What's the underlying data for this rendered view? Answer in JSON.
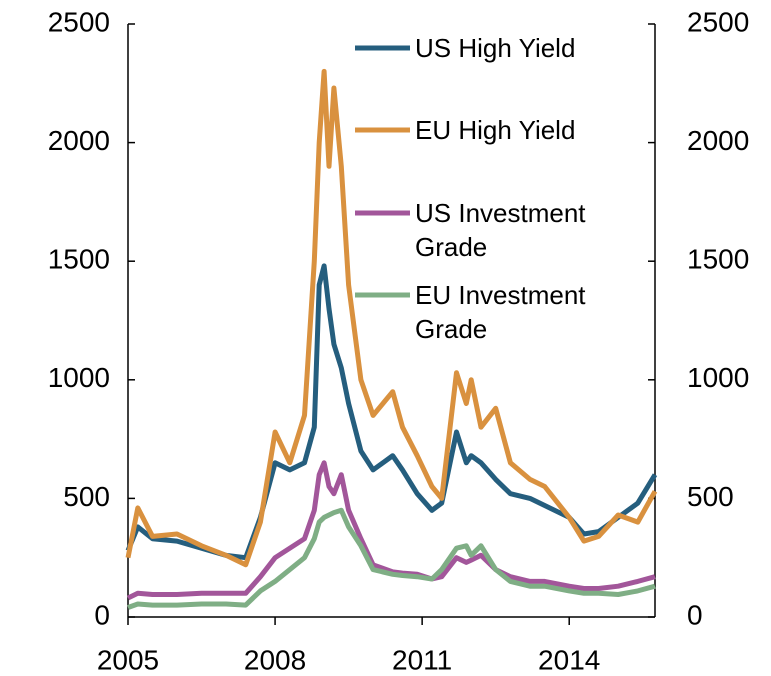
{
  "chart_data": {
    "type": "line",
    "x": [
      2005,
      2005.2,
      2005.5,
      2006,
      2006.5,
      2007,
      2007.4,
      2007.7,
      2008,
      2008.3,
      2008.6,
      2008.8,
      2008.9,
      2009,
      2009.1,
      2009.2,
      2009.35,
      2009.5,
      2009.75,
      2010,
      2010.4,
      2010.6,
      2010.9,
      2011.2,
      2011.4,
      2011.7,
      2011.9,
      2012,
      2012.2,
      2012.5,
      2012.8,
      2013.2,
      2013.5,
      2014,
      2014.3,
      2014.6,
      2015,
      2015.4,
      2015.75
    ],
    "series": [
      {
        "name": "US High Yield",
        "color": "#255e7e",
        "values": [
          280,
          380,
          330,
          320,
          290,
          260,
          250,
          420,
          650,
          620,
          650,
          800,
          1400,
          1480,
          1300,
          1150,
          1050,
          900,
          700,
          620,
          680,
          620,
          520,
          450,
          480,
          780,
          650,
          680,
          650,
          580,
          520,
          500,
          470,
          420,
          350,
          360,
          420,
          480,
          600
        ]
      },
      {
        "name": "EU High Yield",
        "color": "#d9913f",
        "values": [
          250,
          460,
          340,
          350,
          300,
          260,
          220,
          400,
          780,
          650,
          850,
          1500,
          2000,
          2300,
          1900,
          2230,
          1900,
          1400,
          1000,
          850,
          950,
          800,
          680,
          550,
          500,
          1030,
          900,
          1000,
          800,
          880,
          650,
          580,
          550,
          420,
          320,
          340,
          430,
          400,
          530
        ]
      },
      {
        "name": "US Investment Grade",
        "color": "#a2569a",
        "values": [
          80,
          100,
          95,
          95,
          100,
          100,
          100,
          170,
          250,
          290,
          330,
          450,
          600,
          650,
          550,
          520,
          600,
          450,
          330,
          220,
          190,
          185,
          180,
          160,
          170,
          250,
          230,
          240,
          260,
          200,
          170,
          150,
          150,
          130,
          120,
          120,
          130,
          150,
          170
        ]
      },
      {
        "name": "EU Investment Grade",
        "color": "#7fae85",
        "values": [
          40,
          55,
          50,
          50,
          55,
          55,
          50,
          110,
          150,
          200,
          250,
          330,
          400,
          420,
          430,
          440,
          450,
          380,
          300,
          200,
          180,
          175,
          170,
          160,
          200,
          290,
          300,
          260,
          300,
          200,
          150,
          130,
          130,
          110,
          100,
          100,
          95,
          110,
          130
        ]
      }
    ],
    "xlim": [
      2005,
      2015.75
    ],
    "xticks": [
      2005,
      2008,
      2011,
      2014
    ],
    "ylim": [
      0,
      2500
    ],
    "yticks": [
      0,
      500,
      1000,
      1500,
      2000,
      2500
    ],
    "y2lim": [
      0,
      2500
    ],
    "y2ticks": [
      0,
      500,
      1000,
      1500,
      2000,
      2500
    ],
    "legend": "upper right"
  }
}
